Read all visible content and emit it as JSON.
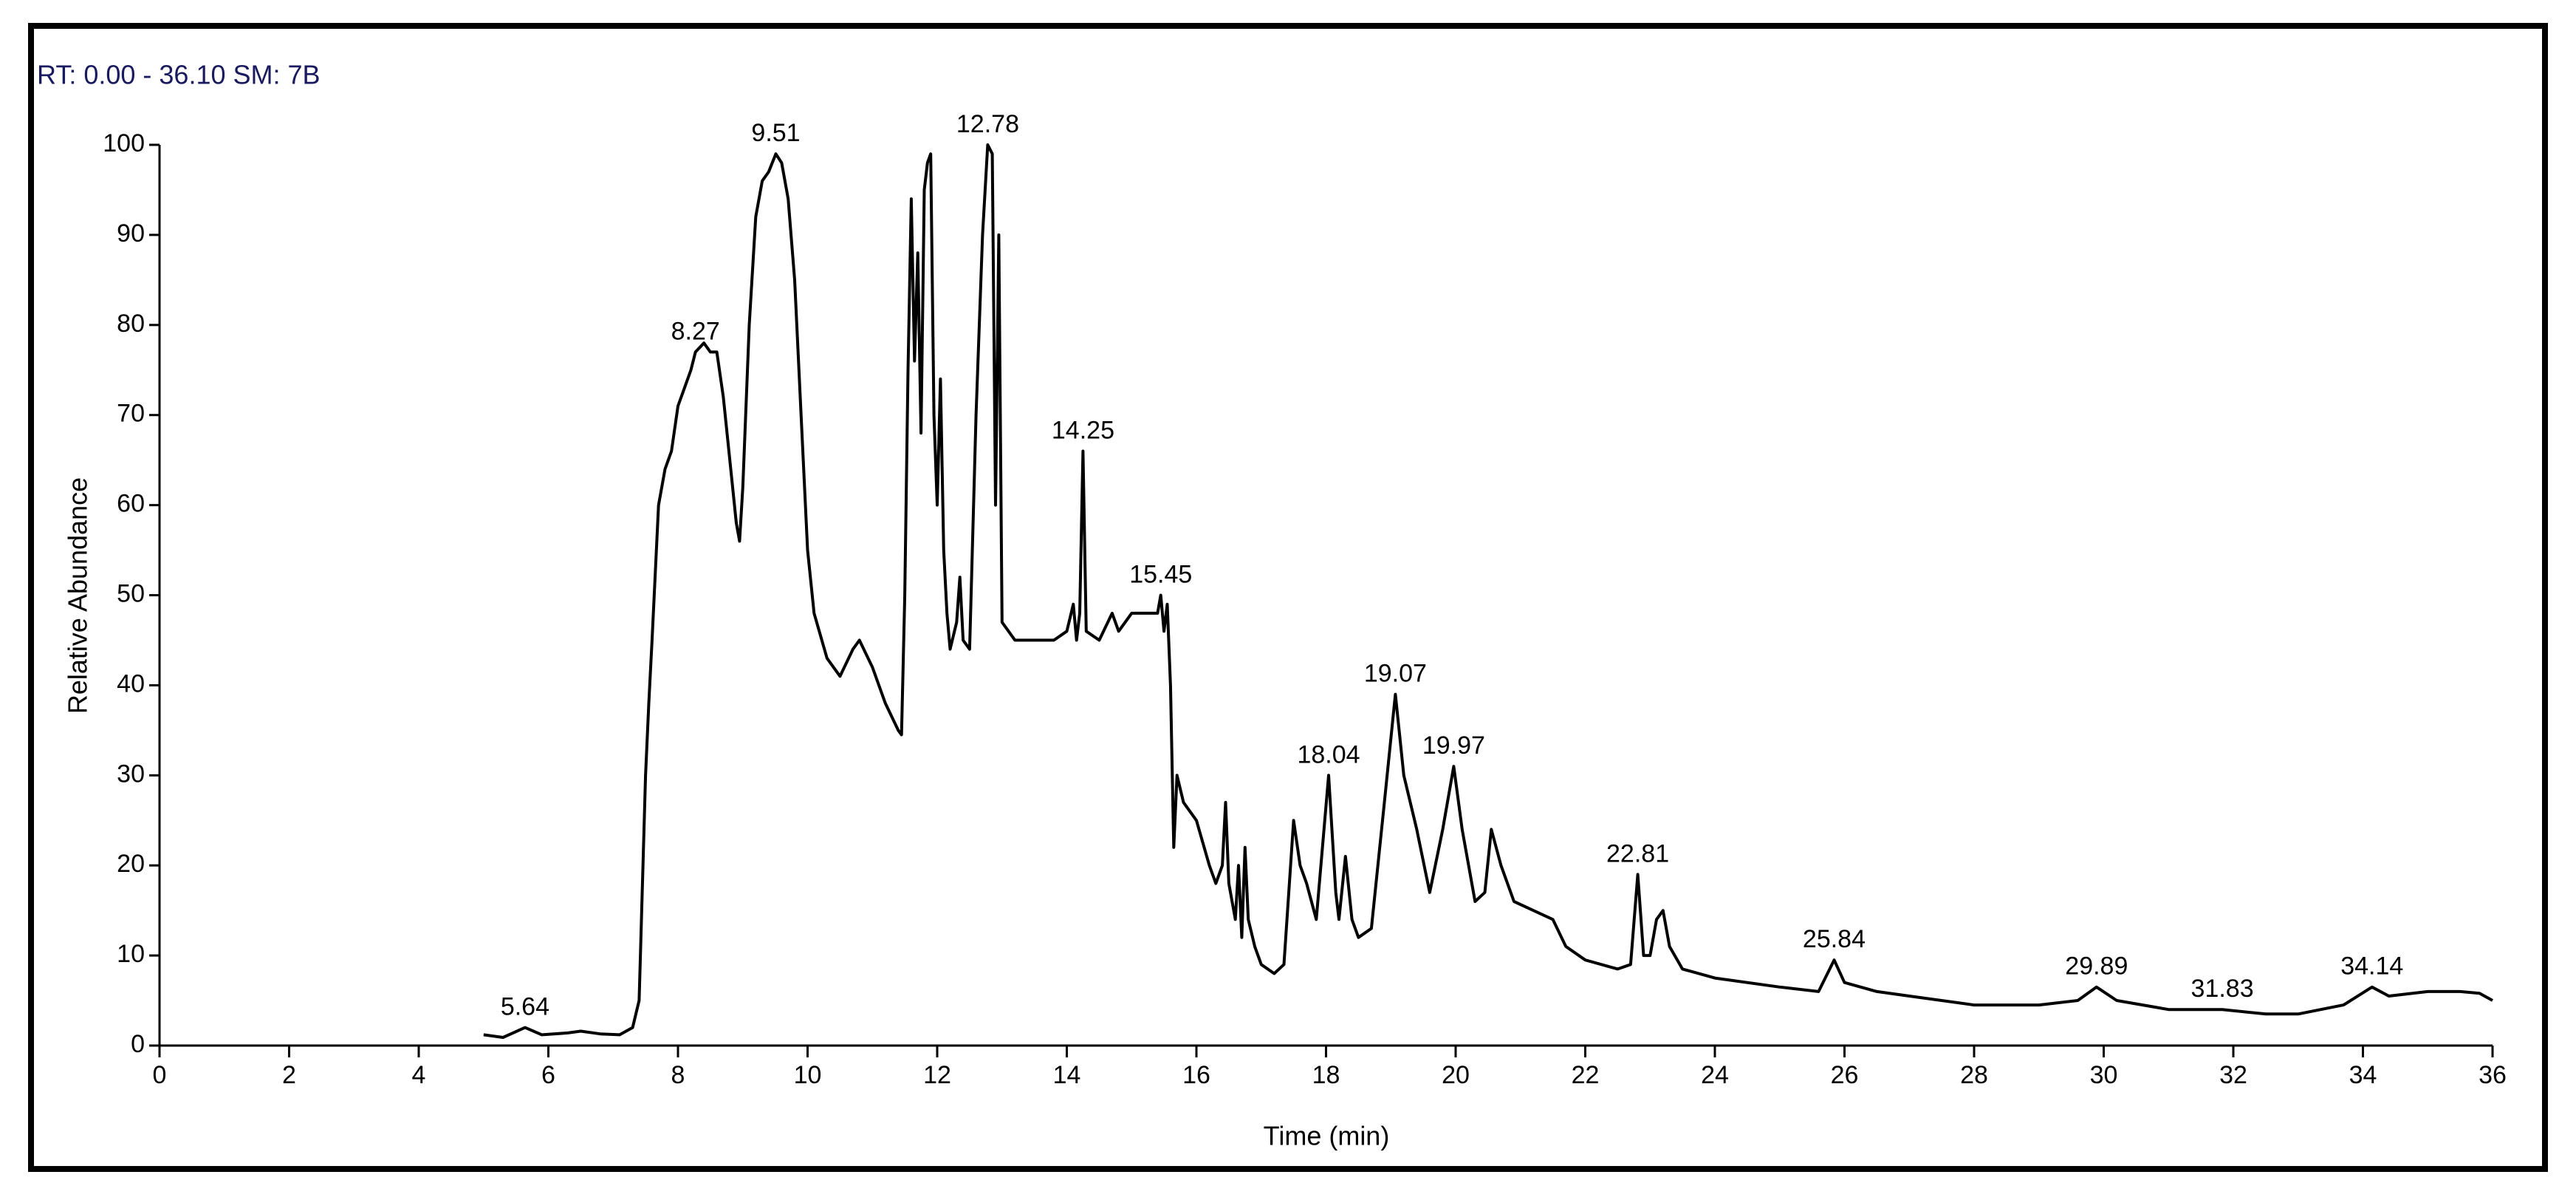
{
  "chart_data": {
    "type": "line",
    "title": "RT: 0.00 - 36.10   SM: 7B",
    "x_label": "Time (min)",
    "y_label": "Relative Abundance",
    "color": "#000000",
    "xlim": [
      0,
      36
    ],
    "xticks": [
      0,
      2,
      4,
      6,
      8,
      10,
      12,
      14,
      16,
      18,
      20,
      22,
      24,
      26,
      28,
      30,
      32,
      34,
      36
    ],
    "ylim": [
      0,
      100
    ],
    "yticks": [
      0,
      10,
      20,
      30,
      40,
      50,
      60,
      70,
      80,
      90,
      100
    ],
    "x": [
      5.0,
      5.3,
      5.64,
      5.9,
      6.3,
      6.5,
      6.8,
      7.1,
      7.3,
      7.4,
      7.5,
      7.55,
      7.6,
      7.7,
      7.8,
      7.9,
      8.0,
      8.1,
      8.2,
      8.27,
      8.4,
      8.5,
      8.6,
      8.7,
      8.8,
      8.9,
      8.95,
      9.0,
      9.1,
      9.2,
      9.3,
      9.4,
      9.51,
      9.6,
      9.7,
      9.8,
      9.9,
      10.0,
      10.1,
      10.3,
      10.5,
      10.7,
      10.8,
      11.0,
      11.2,
      11.4,
      11.45,
      11.5,
      11.55,
      11.6,
      11.65,
      11.7,
      11.75,
      11.8,
      11.85,
      11.9,
      11.95,
      12.0,
      12.05,
      12.1,
      12.15,
      12.2,
      12.3,
      12.35,
      12.4,
      12.5,
      12.6,
      12.7,
      12.78,
      12.85,
      12.9,
      12.95,
      13.0,
      13.2,
      13.5,
      13.8,
      14.0,
      14.1,
      14.15,
      14.2,
      14.25,
      14.3,
      14.5,
      14.7,
      14.8,
      15.0,
      15.2,
      15.4,
      15.45,
      15.5,
      15.55,
      15.6,
      15.65,
      15.7,
      15.8,
      16.0,
      16.2,
      16.3,
      16.4,
      16.45,
      16.5,
      16.6,
      16.65,
      16.7,
      16.75,
      16.8,
      16.9,
      17.0,
      17.2,
      17.35,
      17.5,
      17.6,
      17.7,
      17.85,
      18.04,
      18.15,
      18.2,
      18.3,
      18.4,
      18.5,
      18.7,
      18.8,
      18.9,
      19.07,
      19.2,
      19.4,
      19.6,
      19.8,
      19.97,
      20.1,
      20.3,
      20.45,
      20.55,
      20.7,
      20.9,
      21.2,
      21.5,
      21.7,
      22.0,
      22.5,
      22.7,
      22.81,
      22.9,
      23.0,
      23.1,
      23.2,
      23.3,
      23.5,
      24,
      25,
      25.6,
      25.84,
      26,
      26.5,
      27,
      28,
      29,
      29.6,
      29.89,
      30.2,
      31,
      31.83,
      32.5,
      33,
      33.7,
      34.14,
      34.4,
      35,
      35.5,
      35.8,
      36
    ],
    "values": [
      1.2,
      0.9,
      2.0,
      1.2,
      1.4,
      1.6,
      1.3,
      1.2,
      2,
      5,
      30,
      38,
      45,
      60,
      64,
      66,
      71,
      73,
      75,
      77,
      78,
      77,
      77,
      72,
      65,
      58,
      56,
      62,
      80,
      92,
      96,
      97,
      99,
      98,
      94,
      85,
      70,
      55,
      48,
      43,
      41,
      44,
      45,
      42,
      38,
      35,
      34.5,
      50,
      75,
      94,
      76,
      88,
      68,
      95,
      98,
      99,
      70,
      60,
      74,
      55,
      48,
      44,
      47,
      52,
      45,
      44,
      70,
      90,
      100,
      99,
      60,
      90,
      47,
      45,
      45,
      45,
      46,
      49,
      45,
      48,
      66,
      46,
      45,
      48,
      46,
      48,
      48,
      48,
      50,
      46,
      49,
      40,
      22,
      30,
      27,
      25,
      20,
      18,
      20,
      27,
      18,
      14,
      20,
      12,
      22,
      14,
      11,
      9,
      8,
      9,
      25,
      20,
      18,
      14,
      30,
      17,
      14,
      21,
      14,
      12,
      13,
      20,
      27,
      39,
      30,
      24,
      17,
      24,
      31,
      24,
      16,
      17,
      24,
      20,
      16,
      15,
      14,
      11,
      9.5,
      8.5,
      9,
      19,
      10,
      10,
      14,
      15,
      11,
      8.5,
      7.5,
      6.5,
      6,
      9.5,
      7,
      6,
      5.5,
      4.5,
      4.5,
      5,
      6.5,
      5,
      4,
      4,
      3.5,
      3.5,
      4.5,
      6.5,
      5.5,
      6,
      6,
      5.8,
      5
    ],
    "annotations": [
      {
        "x": 5.64,
        "y": 2
      },
      {
        "x": 8.27,
        "y": 77
      },
      {
        "x": 9.51,
        "y": 99
      },
      {
        "x": 12.78,
        "y": 100
      },
      {
        "x": 14.25,
        "y": 66
      },
      {
        "x": 15.45,
        "y": 50
      },
      {
        "x": 18.04,
        "y": 30
      },
      {
        "x": 19.07,
        "y": 39
      },
      {
        "x": 19.97,
        "y": 31
      },
      {
        "x": 22.81,
        "y": 19
      },
      {
        "x": 25.84,
        "y": 9.5
      },
      {
        "x": 29.89,
        "y": 6.5
      },
      {
        "x": 31.83,
        "y": 4
      },
      {
        "x": 34.14,
        "y": 6.5
      }
    ]
  }
}
